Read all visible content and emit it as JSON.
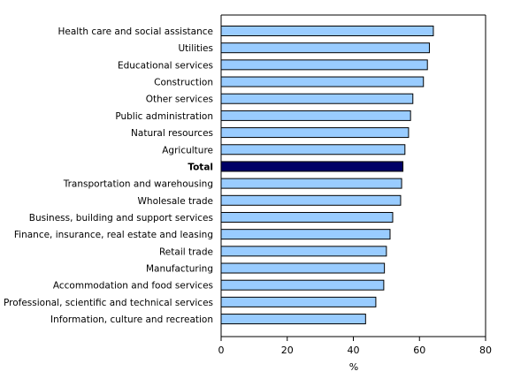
{
  "chart_data": {
    "type": "bar",
    "orientation": "horizontal",
    "title": "",
    "xlabel": "%",
    "ylabel": "",
    "xlim": [
      0,
      80
    ],
    "xticks": [
      0,
      20,
      40,
      60,
      80
    ],
    "xtick_labels": [
      "0",
      "20",
      "40",
      "60",
      "80"
    ],
    "grid": false,
    "legend": "none",
    "colors": {
      "bar": "#99ccff",
      "highlight": "#000066",
      "bar_stroke": "#000000"
    },
    "highlight_category": "Total",
    "categories": [
      "Health care and social assistance",
      "Utilities",
      "Educational services",
      "Construction",
      "Other services",
      "Public administration",
      "Natural resources",
      "Agriculture",
      "Total",
      "Transportation and warehousing",
      "Wholesale trade",
      "Business, building and support services",
      "Finance, insurance, real estate and leasing",
      "Retail trade",
      "Manufacturing",
      "Accommodation and food services",
      "Professional, scientific and technical services",
      "Information, culture and recreation"
    ],
    "values": [
      64.2,
      63.0,
      62.4,
      61.2,
      58.0,
      57.3,
      56.7,
      55.6,
      55.0,
      54.6,
      54.3,
      51.9,
      51.1,
      50.0,
      49.4,
      49.2,
      46.8,
      43.7
    ]
  }
}
